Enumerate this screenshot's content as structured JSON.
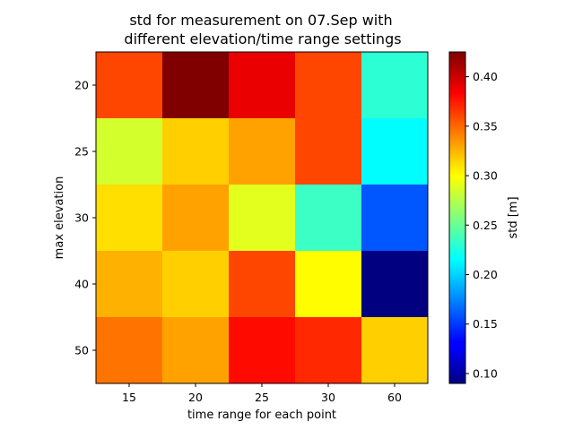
{
  "chart_data": {
    "type": "heatmap",
    "title_line1": "std for measurement on 07.Sep with",
    "title_line2": "different elevation/time range settings",
    "xlabel": "time range for each point",
    "ylabel": "max elevation",
    "x_categories": [
      "15",
      "20",
      "25",
      "30",
      "60"
    ],
    "y_categories": [
      "20",
      "25",
      "30",
      "40",
      "50"
    ],
    "values": [
      [
        0.36,
        0.425,
        0.39,
        0.36,
        0.23
      ],
      [
        0.285,
        0.315,
        0.33,
        0.36,
        0.215
      ],
      [
        0.31,
        0.33,
        0.29,
        0.235,
        0.16
      ],
      [
        0.325,
        0.315,
        0.36,
        0.3,
        0.09
      ],
      [
        0.345,
        0.33,
        0.38,
        0.37,
        0.315
      ]
    ],
    "colormap": "jet",
    "colorbar": {
      "label": "std [m]",
      "min": 0.09,
      "max": 0.425,
      "ticks": [
        "0.10",
        "0.15",
        "0.20",
        "0.25",
        "0.30",
        "0.35",
        "0.40"
      ]
    }
  }
}
